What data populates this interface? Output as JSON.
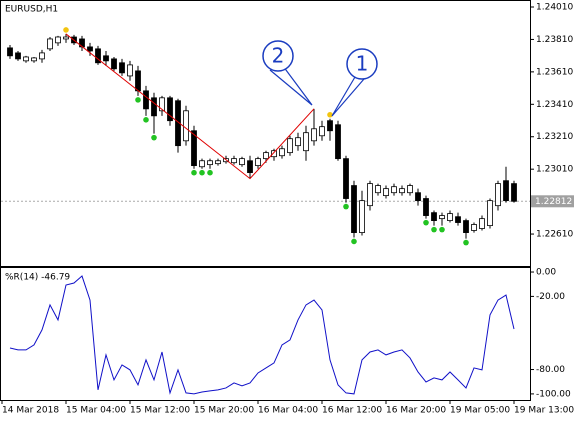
{
  "chart_data": [
    {
      "type": "candlestick",
      "title": "EURUSD,H1",
      "open": [
        1.23758,
        1.23727,
        1.23678,
        1.23678,
        1.2369,
        1.23752,
        1.23789,
        1.23813,
        1.23825,
        1.23813,
        1.23764,
        1.23752,
        1.23709,
        1.2369,
        1.23666,
        1.23585,
        1.23616,
        1.23493,
        1.2345,
        1.2337,
        1.2345,
        1.23432,
        1.23185,
        1.23247,
        1.23025,
        1.23038,
        1.23044,
        1.23056,
        1.2305,
        1.23038,
        1.23062,
        1.23032,
        1.23075,
        1.23087,
        1.23093,
        1.23112,
        1.23155,
        1.23124,
        1.23185,
        1.23216,
        1.23309,
        1.23284,
        1.23075,
        1.22909,
        1.22619,
        1.22785,
        1.22865,
        1.22847,
        1.22865,
        1.22865,
        1.22865,
        1.22865,
        1.22829,
        1.22742,
        1.22705,
        1.22693,
        1.22717,
        1.22693,
        1.22632,
        1.22644,
        1.22662,
        1.22785,
        1.22939,
        1.22921
      ],
      "high": [
        1.23776,
        1.23739,
        1.23709,
        1.23702,
        1.23746,
        1.23825,
        1.23832,
        1.23844,
        1.23838,
        1.23832,
        1.23789,
        1.2377,
        1.23739,
        1.23702,
        1.2369,
        1.23678,
        1.23647,
        1.23524,
        1.23481,
        1.23462,
        1.23462,
        1.23444,
        1.23401,
        1.23278,
        1.23075,
        1.23075,
        1.23075,
        1.23093,
        1.23093,
        1.23087,
        1.23093,
        1.23087,
        1.23124,
        1.23136,
        1.23155,
        1.23216,
        1.23235,
        1.23278,
        1.23382,
        1.23309,
        1.23321,
        1.23309,
        1.23093,
        1.22939,
        1.22877,
        1.22939,
        1.22921,
        1.22909,
        1.22921,
        1.22909,
        1.22921,
        1.2289,
        1.22847,
        1.22755,
        1.22742,
        1.22755,
        1.22742,
        1.22705,
        1.22681,
        1.22724,
        1.22829,
        1.22939,
        1.23025,
        1.22939
      ],
      "low": [
        1.2369,
        1.23678,
        1.23666,
        1.23666,
        1.23666,
        1.23739,
        1.2377,
        1.23789,
        1.23776,
        1.23739,
        1.23709,
        1.23653,
        1.23647,
        1.23616,
        1.23585,
        1.23555,
        1.23462,
        1.23339,
        1.23229,
        1.23339,
        1.23278,
        1.23112,
        1.23155,
        1.23013,
        1.23013,
        1.23013,
        1.23032,
        1.23044,
        1.23038,
        1.23025,
        1.22952,
        1.23013,
        1.2305,
        1.23062,
        1.23075,
        1.23093,
        1.23124,
        1.23062,
        1.23155,
        1.23185,
        1.23185,
        1.23062,
        1.22804,
        1.22589,
        1.22601,
        1.22755,
        1.22847,
        1.22829,
        1.22847,
        1.22847,
        1.22847,
        1.22785,
        1.22705,
        1.22662,
        1.22662,
        1.22681,
        1.22662,
        1.22582,
        1.22619,
        1.22632,
        1.22644,
        1.22755,
        1.22804,
        1.22804
      ],
      "close": [
        1.23709,
        1.2369,
        1.23702,
        1.23696,
        1.23727,
        1.23813,
        1.23825,
        1.23825,
        1.23789,
        1.23764,
        1.23739,
        1.23666,
        1.23678,
        1.23629,
        1.23604,
        1.23653,
        1.23493,
        1.23382,
        1.23339,
        1.2345,
        1.23309,
        1.23155,
        1.2337,
        1.23032,
        1.23062,
        1.23062,
        1.23062,
        1.23075,
        1.23075,
        1.23075,
        1.22989,
        1.23075,
        1.23112,
        1.23124,
        1.23136,
        1.23198,
        1.23204,
        1.23235,
        1.23259,
        1.23272,
        1.23247,
        1.23075,
        1.22829,
        1.22619,
        1.22816,
        1.22921,
        1.22909,
        1.2289,
        1.22902,
        1.2289,
        1.22909,
        1.22816,
        1.22724,
        1.22693,
        1.22724,
        1.22736,
        1.22681,
        1.22619,
        1.22669,
        1.22705,
        1.22816,
        1.22921,
        1.22816,
        1.22812
      ],
      "up_color": "#ffffff",
      "down_color": "#000000",
      "upper_fractals": [
        {
          "index": 7,
          "value": 1.23844
        },
        {
          "index": 40,
          "value": 1.23321
        }
      ],
      "lower_fractals": [
        {
          "index": 16,
          "value": 1.23462
        },
        {
          "index": 17,
          "value": 1.23339
        },
        {
          "index": 18,
          "value": 1.23229
        },
        {
          "index": 23,
          "value": 1.23013
        },
        {
          "index": 24,
          "value": 1.23013
        },
        {
          "index": 25,
          "value": 1.23013
        },
        {
          "index": 42,
          "value": 1.22804
        },
        {
          "index": 43,
          "value": 1.22589
        },
        {
          "index": 52,
          "value": 1.22705
        },
        {
          "index": 53,
          "value": 1.22662
        },
        {
          "index": 54,
          "value": 1.22662
        },
        {
          "index": 57,
          "value": 1.22582
        }
      ],
      "upper_fractal_color": "#f2c40f",
      "lower_fractal_color": "#22c322",
      "zigzag": {
        "index": [
          7,
          30,
          38
        ],
        "values": [
          1.23844,
          1.22952,
          1.23382
        ],
        "color": "#e00000"
      },
      "current_price": 1.22812,
      "annotations": [
        {
          "label": "1",
          "index": 40,
          "value": 1.23321
        },
        {
          "label": "2",
          "index": 38,
          "value": 1.23382
        }
      ],
      "xlim": [
        -1,
        65
      ],
      "ylim": [
        1.22413,
        1.24047
      ],
      "yticks": [
        {
          "value": 1.2401,
          "label": "1.24010"
        },
        {
          "value": 1.2381,
          "label": "1.23810"
        },
        {
          "value": 1.2361,
          "label": "1.23610"
        },
        {
          "value": 1.2341,
          "label": "1.23410"
        },
        {
          "value": 1.2321,
          "label": "1.23210"
        },
        {
          "value": 1.2301,
          "label": "1.23010"
        },
        {
          "value": 1.2261,
          "label": "1.22610"
        }
      ]
    },
    {
      "type": "line",
      "title": "%R(14) -46.79",
      "color": "#1010c8",
      "values": [
        -62.3,
        -63.9,
        -63.9,
        -59.8,
        -47.5,
        -27.0,
        -39.3,
        -10.7,
        -9.0,
        -3.3,
        -23.0,
        -96.7,
        -68.0,
        -88.5,
        -76.2,
        -80.3,
        -92.6,
        -72.1,
        -88.5,
        -65.6,
        -99.2,
        -80.3,
        -99.2,
        -100,
        -98.4,
        -97.5,
        -96.7,
        -95.1,
        -91.0,
        -93.4,
        -91.0,
        -82.8,
        -78.7,
        -74.6,
        -59.8,
        -55.7,
        -39.3,
        -27.0,
        -23.0,
        -31.1,
        -72.1,
        -92.6,
        -99.2,
        -100,
        -72.1,
        -65.6,
        -63.9,
        -68.0,
        -65.6,
        -63.9,
        -70.5,
        -82.0,
        -90.2,
        -86.9,
        -88.5,
        -82.0,
        -88.5,
        -95.1,
        -78.7,
        -80.3,
        -35.2,
        -23.0,
        -18.9,
        -46.79
      ],
      "xlim": [
        -1,
        65
      ],
      "ylim": [
        -105,
        3.3
      ],
      "yticks": [
        {
          "value": 0,
          "label": "0.00"
        },
        {
          "value": -20,
          "label": "-20.00"
        },
        {
          "value": -80,
          "label": "-80.00"
        },
        {
          "value": -100,
          "label": "-100.00"
        }
      ],
      "xticks": [
        {
          "value": -1,
          "label": "14 Mar 2018"
        },
        {
          "value": 7,
          "label": "15 Mar 04:00"
        },
        {
          "value": 15,
          "label": "15 Mar 12:00"
        },
        {
          "value": 23,
          "label": "15 Mar 20:00"
        },
        {
          "value": 31,
          "label": "16 Mar 04:00"
        },
        {
          "value": 39,
          "label": "16 Mar 12:00"
        },
        {
          "value": 47,
          "label": "16 Mar 20:00"
        },
        {
          "value": 55,
          "label": "19 Mar 05:00"
        },
        {
          "value": 63,
          "label": "19 Mar 13:00"
        }
      ]
    }
  ]
}
